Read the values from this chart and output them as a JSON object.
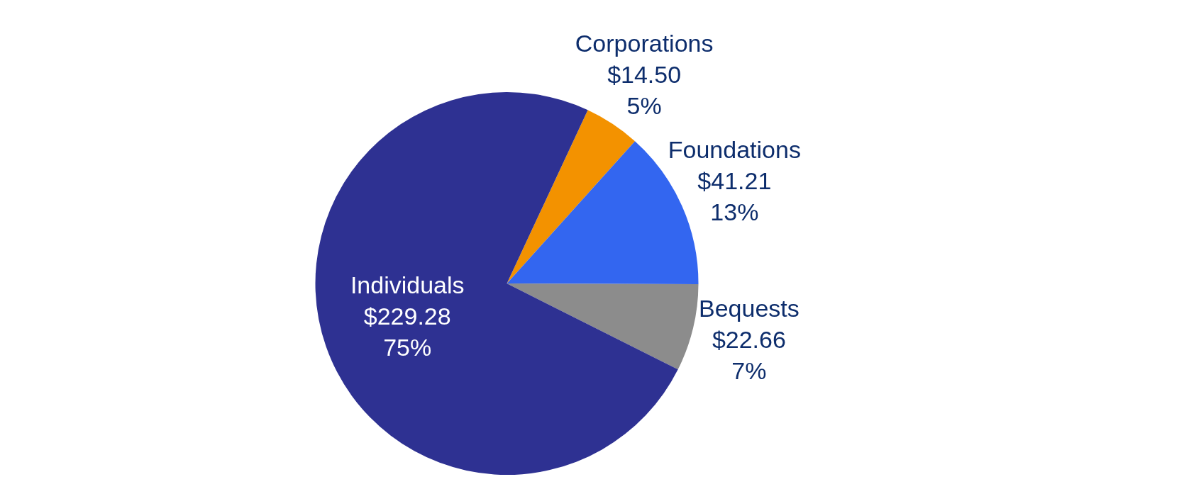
{
  "chart_data": {
    "type": "pie",
    "categories": [
      "Corporations",
      "Foundations",
      "Bequests",
      "Individuals"
    ],
    "values": [
      14.5,
      41.21,
      22.66,
      229.28
    ],
    "colors": [
      "#f39200",
      "#3366f0",
      "#8c8c8c",
      "#2e3192"
    ],
    "value_labels": [
      "$14.50\n5%",
      "$41.21\n13%",
      "$22.66\n7%",
      "$229.28\n75%"
    ],
    "legend": false
  }
}
